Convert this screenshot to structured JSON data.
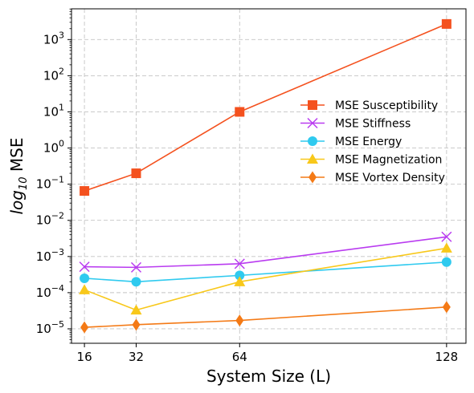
{
  "chart_data": {
    "type": "line",
    "title": "",
    "xlabel": "System Size (L)",
    "ylabel_prefix": "log",
    "ylabel_sub": "10",
    "ylabel_suffix": " MSE",
    "x": [
      16,
      32,
      64,
      128
    ],
    "x_ticks": [
      "16",
      "32",
      "64",
      "128"
    ],
    "xlim": [
      12,
      134
    ],
    "yscale": "log",
    "ylim_exp": [
      -5.4,
      3.85
    ],
    "y_ticks_exp": [
      -5,
      -4,
      -3,
      -2,
      -1,
      0,
      1,
      2,
      3
    ],
    "grid": true,
    "legend_position": "right",
    "series": [
      {
        "name": "MSE Susceptibility",
        "color": "#f4511e",
        "marker": "square",
        "values": [
          0.065,
          0.2,
          10,
          2700
        ]
      },
      {
        "name": "MSE Stiffness",
        "color": "#b93bf0",
        "marker": "x",
        "values": [
          0.00052,
          0.0005,
          0.00063,
          0.0035
        ]
      },
      {
        "name": "MSE Energy",
        "color": "#2fcaef",
        "marker": "circle",
        "values": [
          0.00025,
          0.0002,
          0.0003,
          0.0007
        ]
      },
      {
        "name": "MSE Magnetization",
        "color": "#f8c81a",
        "marker": "triangle",
        "values": [
          0.00012,
          3.3e-05,
          0.0002,
          0.0017
        ]
      },
      {
        "name": "MSE Vortex Density",
        "color": "#f47a16",
        "marker": "diamond",
        "values": [
          1.1e-05,
          1.3e-05,
          1.7e-05,
          4e-05
        ]
      }
    ]
  }
}
